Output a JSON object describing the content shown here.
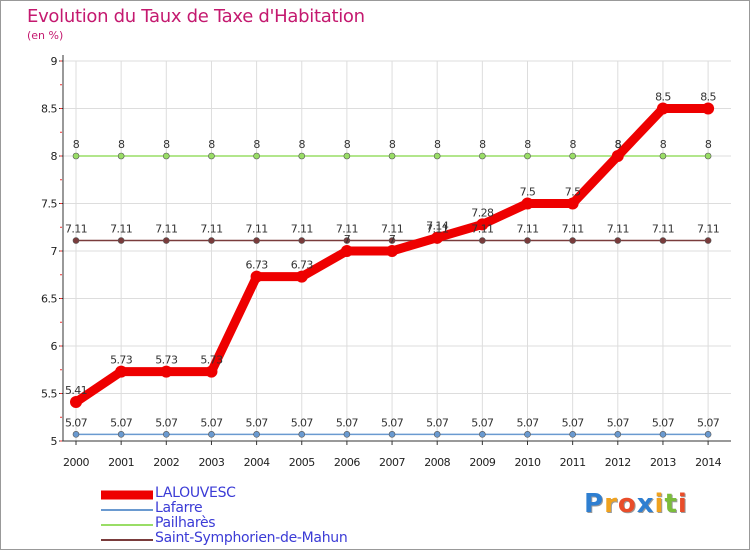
{
  "header": {
    "title": "Evolution du Taux de Taxe d'Habitation",
    "subtitle": "(en %)"
  },
  "logo": {
    "letters": [
      "P",
      "r",
      "o",
      "x",
      "i",
      "t",
      "i"
    ],
    "colors": [
      "#2f7fd1",
      "#f0a21e",
      "#e94d2a",
      "#2f7fd1",
      "#f0a21e",
      "#7bbd3b",
      "#e94d2a"
    ]
  },
  "chart_data": {
    "type": "line",
    "title": "Evolution du Taux de Taxe d'Habitation",
    "subtitle": "(en %)",
    "xlabel": "",
    "ylabel": "",
    "x": [
      "2000",
      "2001",
      "2002",
      "2003",
      "2004",
      "2005",
      "2006",
      "2007",
      "2008",
      "2009",
      "2010",
      "2011",
      "2012",
      "2013",
      "2014"
    ],
    "ylim": [
      5,
      9
    ],
    "yticks": [
      "5",
      "5.5",
      "6",
      "6.5",
      "7",
      "7.5",
      "8",
      "8.5",
      "9"
    ],
    "legend_position": "bottom-left",
    "series": [
      {
        "name": "LALOUVESC",
        "color": "#ee0000",
        "values": [
          5.41,
          5.73,
          5.73,
          5.73,
          6.73,
          6.73,
          7.0,
          7.0,
          7.14,
          7.28,
          7.5,
          7.5,
          8.0,
          8.5,
          8.5
        ],
        "labels": [
          "5.41",
          "5.73",
          "5.73",
          "5.73",
          "6.73",
          "6.73",
          "7",
          "7",
          "7.14",
          "7.28",
          "7.5",
          "7.5",
          "8",
          "8.5",
          "8.5"
        ]
      },
      {
        "name": "Lafarre",
        "color": "#6a9ad0",
        "values": [
          5.07,
          5.07,
          5.07,
          5.07,
          5.07,
          5.07,
          5.07,
          5.07,
          5.07,
          5.07,
          5.07,
          5.07,
          5.07,
          5.07,
          5.07
        ],
        "labels": [
          "5.07",
          "5.07",
          "5.07",
          "5.07",
          "5.07",
          "5.07",
          "5.07",
          "5.07",
          "5.07",
          "5.07",
          "5.07",
          "5.07",
          "5.07",
          "5.07",
          "5.07"
        ]
      },
      {
        "name": "Pailharès",
        "color": "#99dd66",
        "values": [
          8,
          8,
          8,
          8,
          8,
          8,
          8,
          8,
          8,
          8,
          8,
          8,
          8,
          8,
          8
        ],
        "labels": [
          "8",
          "8",
          "8",
          "8",
          "8",
          "8",
          "8",
          "8",
          "8",
          "8",
          "8",
          "8",
          "8",
          "8",
          "8"
        ]
      },
      {
        "name": "Saint-Symphorien-de-Mahun",
        "color": "#7a3c3c",
        "values": [
          7.11,
          7.11,
          7.11,
          7.11,
          7.11,
          7.11,
          7.11,
          7.11,
          7.11,
          7.11,
          7.11,
          7.11,
          7.11,
          7.11,
          7.11
        ],
        "labels": [
          "7.11",
          "7.11",
          "7.11",
          "7.11",
          "7.11",
          "7.11",
          "7.11",
          "7.11",
          "7.11",
          "7.11",
          "7.11",
          "7.11",
          "7.11",
          "7.11",
          "7.11"
        ]
      }
    ]
  }
}
